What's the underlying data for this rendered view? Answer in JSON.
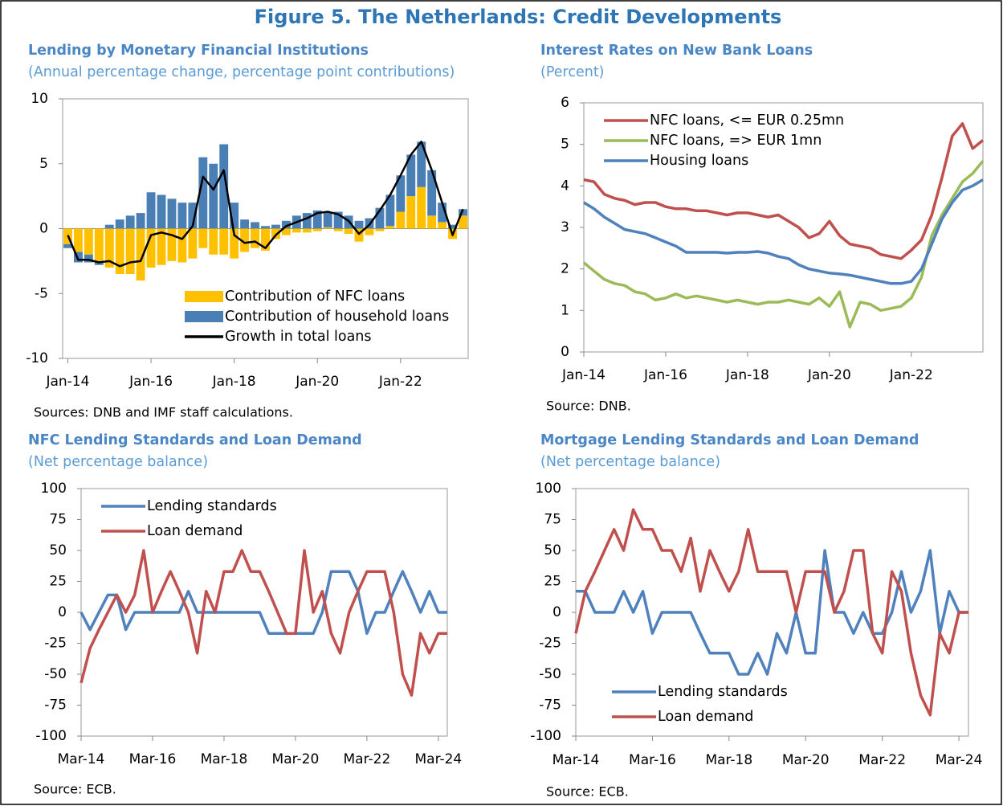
{
  "figure_title": "Figure 5. The Netherlands: Credit Developments",
  "chart_data": [
    {
      "type": "bar",
      "title": "Lending by Monetary Financial Institutions",
      "subtitle": "(Annual percentage change, percentage point contributions)",
      "note": "Sources: DNB and IMF staff calculations.",
      "categories": [
        "Jan-14",
        null,
        null,
        null,
        null,
        null,
        null,
        null,
        "Jan-16",
        null,
        null,
        null,
        null,
        null,
        null,
        null,
        "Jan-18",
        null,
        null,
        null,
        null,
        null,
        null,
        null,
        "Jan-20",
        null,
        null,
        null,
        null,
        null,
        null,
        null,
        "Jan-22",
        null,
        null,
        null,
        null,
        null,
        null
      ],
      "series": [
        {
          "name": "Contribution of NFC loans",
          "type": "bar",
          "color": "#ffc000",
          "values": [
            -1.2,
            -1.8,
            -2.0,
            -2.5,
            -3.0,
            -3.5,
            -3.5,
            -4.0,
            -3.0,
            -2.8,
            -2.5,
            -2.6,
            -2.3,
            -1.5,
            -2.0,
            -2.0,
            -2.3,
            -1.8,
            -1.5,
            -1.7,
            -0.8,
            -0.5,
            -0.3,
            -0.3,
            -0.2,
            0.1,
            -0.2,
            -0.4,
            -1.0,
            -0.5,
            -0.2,
            0.2,
            1.3,
            2.5,
            3.2,
            1.0,
            0.5,
            -0.8,
            1.0
          ]
        },
        {
          "name": "Contribution of household loans",
          "type": "bar",
          "color": "#4a7fb5",
          "values": [
            -0.3,
            -0.8,
            -0.6,
            -0.3,
            0.3,
            0.7,
            1.0,
            1.2,
            2.8,
            2.6,
            2.3,
            2.0,
            2.0,
            5.5,
            5.0,
            6.5,
            2.0,
            0.7,
            0.5,
            0.2,
            0.3,
            0.6,
            1.0,
            1.2,
            1.4,
            1.2,
            1.3,
            1.0,
            0.6,
            0.8,
            1.6,
            2.4,
            2.8,
            3.2,
            3.5,
            3.5,
            1.5,
            0.3,
            0.5
          ]
        },
        {
          "name": "Growth in total loans",
          "type": "line",
          "color": "#000000",
          "values": [
            -0.5,
            -2.4,
            -2.4,
            -2.6,
            -2.5,
            -2.9,
            -2.6,
            -2.5,
            -0.5,
            -0.3,
            -0.5,
            -0.8,
            0.2,
            4.0,
            3.0,
            4.5,
            -0.5,
            -1.1,
            -1.0,
            -1.5,
            -0.5,
            0.2,
            0.5,
            0.8,
            1.2,
            1.3,
            1.1,
            0.6,
            -0.4,
            0.3,
            1.4,
            2.6,
            4.1,
            5.7,
            6.7,
            4.5,
            2.0,
            -0.5,
            1.5
          ]
        }
      ],
      "ylim": [
        -10,
        10
      ],
      "yticks": [
        -10,
        -5,
        0,
        5,
        10
      ],
      "legend": "lower right"
    },
    {
      "type": "line",
      "title": "Interest Rates on New Bank Loans",
      "subtitle": "(Percent)",
      "note": "Source: DNB.",
      "categories": [
        "Jan-14",
        null,
        null,
        null,
        null,
        null,
        null,
        null,
        "Jan-16",
        null,
        null,
        null,
        null,
        null,
        null,
        null,
        "Jan-18",
        null,
        null,
        null,
        null,
        null,
        null,
        null,
        "Jan-20",
        null,
        null,
        null,
        null,
        null,
        null,
        null,
        "Jan-22",
        null,
        null,
        null,
        null,
        null,
        null,
        null
      ],
      "series": [
        {
          "name": "NFC loans, <= EUR 0.25mn",
          "color": "#c0504d",
          "values": [
            4.15,
            4.1,
            3.8,
            3.7,
            3.65,
            3.55,
            3.6,
            3.6,
            3.5,
            3.45,
            3.45,
            3.4,
            3.4,
            3.35,
            3.3,
            3.35,
            3.35,
            3.3,
            3.25,
            3.3,
            3.15,
            3.0,
            2.75,
            2.85,
            3.15,
            2.8,
            2.6,
            2.55,
            2.5,
            2.35,
            2.3,
            2.25,
            2.45,
            2.7,
            3.3,
            4.2,
            5.2,
            5.5,
            4.9,
            5.1
          ]
        },
        {
          "name": "NFC loans, => EUR 1mn",
          "color": "#9bbb59",
          "values": [
            2.15,
            1.95,
            1.75,
            1.65,
            1.6,
            1.45,
            1.4,
            1.25,
            1.3,
            1.4,
            1.3,
            1.35,
            1.3,
            1.25,
            1.2,
            1.25,
            1.2,
            1.15,
            1.2,
            1.2,
            1.25,
            1.2,
            1.15,
            1.3,
            1.1,
            1.45,
            0.6,
            1.2,
            1.15,
            1.0,
            1.05,
            1.1,
            1.3,
            1.8,
            2.8,
            3.3,
            3.7,
            4.1,
            4.3,
            4.6
          ]
        },
        {
          "name": "Housing loans",
          "color": "#4f81bd",
          "values": [
            3.6,
            3.45,
            3.25,
            3.1,
            2.95,
            2.9,
            2.85,
            2.75,
            2.65,
            2.55,
            2.4,
            2.4,
            2.4,
            2.4,
            2.38,
            2.4,
            2.4,
            2.42,
            2.38,
            2.3,
            2.25,
            2.1,
            2.0,
            1.95,
            1.9,
            1.88,
            1.85,
            1.8,
            1.75,
            1.7,
            1.65,
            1.65,
            1.7,
            2.0,
            2.6,
            3.2,
            3.6,
            3.9,
            4.0,
            4.15
          ]
        }
      ],
      "ylim": [
        0,
        6
      ],
      "yticks": [
        0,
        1,
        2,
        3,
        4,
        5,
        6
      ],
      "legend": "upper left"
    },
    {
      "type": "line",
      "title": "NFC Lending Standards and Loan Demand",
      "subtitle": "(Net percentage balance)",
      "note": "Source: ECB.",
      "categories": [
        "Mar-14",
        null,
        null,
        null,
        null,
        null,
        null,
        null,
        "Mar-16",
        null,
        null,
        null,
        null,
        null,
        null,
        null,
        "Mar-18",
        null,
        null,
        null,
        null,
        null,
        null,
        null,
        "Mar-20",
        null,
        null,
        null,
        null,
        null,
        null,
        null,
        "Mar-22",
        null,
        null,
        null,
        null,
        null,
        null,
        null,
        "Mar-24",
        null
      ],
      "series": [
        {
          "name": "Lending standards",
          "color": "#4f81bd",
          "values": [
            0,
            -14,
            0,
            14,
            14,
            -14,
            0,
            0,
            0,
            0,
            0,
            0,
            17,
            0,
            0,
            0,
            0,
            0,
            0,
            0,
            0,
            -17,
            -17,
            -17,
            -17,
            -17,
            -17,
            0,
            33,
            33,
            33,
            17,
            -17,
            0,
            0,
            17,
            33,
            17,
            0,
            17,
            0,
            0
          ]
        },
        {
          "name": "Loan demand",
          "color": "#c0504d",
          "values": [
            -57,
            -29,
            -14,
            0,
            14,
            0,
            14,
            50,
            0,
            17,
            33,
            17,
            0,
            -33,
            17,
            0,
            33,
            33,
            50,
            33,
            33,
            17,
            0,
            -17,
            -17,
            50,
            0,
            17,
            -17,
            -33,
            0,
            17,
            33,
            33,
            33,
            0,
            -50,
            -67,
            -17,
            -33,
            -17,
            -17
          ]
        }
      ],
      "ylim": [
        -100,
        100
      ],
      "yticks": [
        -100,
        -75,
        -50,
        -25,
        0,
        25,
        50,
        75,
        100
      ],
      "legend": "upper left"
    },
    {
      "type": "line",
      "title": "Mortgage Lending Standards and Loan Demand",
      "subtitle": "(Net percentage balance)",
      "note": "Source: ECB.",
      "categories": [
        "Mar-14",
        null,
        null,
        null,
        null,
        null,
        null,
        null,
        "Mar-16",
        null,
        null,
        null,
        null,
        null,
        null,
        null,
        "Mar-18",
        null,
        null,
        null,
        null,
        null,
        null,
        null,
        "Mar-20",
        null,
        null,
        null,
        null,
        null,
        null,
        null,
        "Mar-22",
        null,
        null,
        null,
        null,
        null,
        null,
        null,
        "Mar-24",
        null
      ],
      "series": [
        {
          "name": "Lending standards",
          "color": "#4f81bd",
          "values": [
            17,
            17,
            0,
            0,
            0,
            17,
            0,
            17,
            -17,
            0,
            0,
            0,
            0,
            -17,
            -33,
            -33,
            -33,
            -50,
            -50,
            -33,
            -50,
            -17,
            -33,
            0,
            -33,
            -33,
            50,
            0,
            0,
            -17,
            0,
            -17,
            -17,
            0,
            33,
            0,
            17,
            50,
            -17,
            17,
            0,
            0
          ]
        },
        {
          "name": "Loan demand",
          "color": "#c0504d",
          "values": [
            -17,
            17,
            33,
            50,
            67,
            50,
            83,
            67,
            67,
            50,
            50,
            33,
            60,
            17,
            50,
            33,
            17,
            33,
            67,
            33,
            33,
            33,
            33,
            0,
            33,
            33,
            33,
            0,
            17,
            50,
            50,
            -17,
            -33,
            33,
            17,
            -33,
            -67,
            -83,
            -17,
            -33,
            0,
            0
          ]
        }
      ],
      "ylim": [
        -100,
        100
      ],
      "yticks": [
        -100,
        -75,
        -50,
        -25,
        0,
        25,
        50,
        75,
        100
      ],
      "legend": "lower left"
    }
  ]
}
